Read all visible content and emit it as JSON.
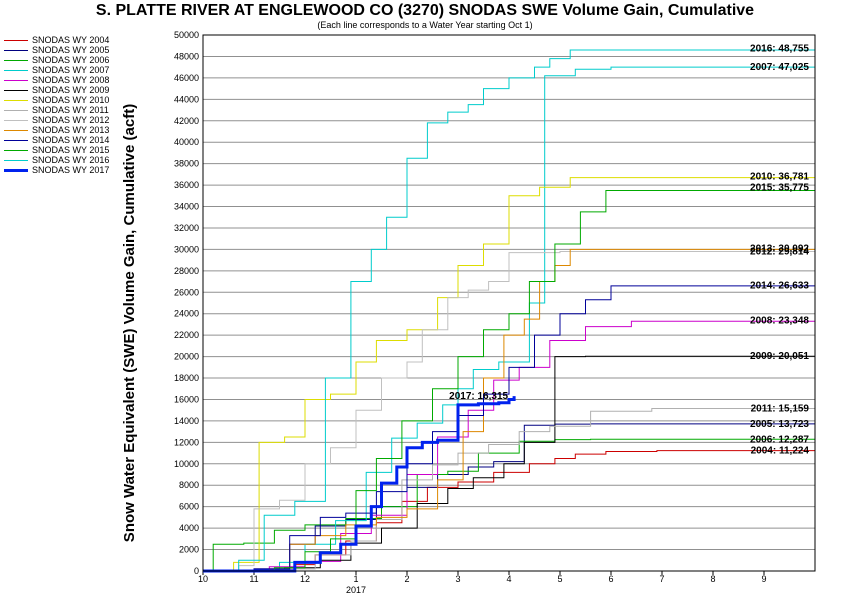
{
  "chart_data": {
    "type": "line",
    "title": "S. PLATTE RIVER AT ENGLEWOOD CO (3270) SNODAS SWE Volume Gain, Cumulative",
    "subtitle": "(Each line corresponds to a Water Year starting Oct 1)",
    "ylabel": "Snow Water Equivalent (SWE) Volume Gain, Cumulative (acft)",
    "xlabel": "",
    "x_year_label": "2017",
    "ylim": [
      0,
      50000
    ],
    "yticks": [
      0,
      2000,
      4000,
      6000,
      8000,
      10000,
      12000,
      14000,
      16000,
      18000,
      20000,
      22000,
      24000,
      26000,
      28000,
      30000,
      32000,
      34000,
      36000,
      38000,
      40000,
      42000,
      44000,
      46000,
      48000,
      50000
    ],
    "x_months": [
      "10",
      "11",
      "12",
      "1",
      "2",
      "3",
      "4",
      "5",
      "6",
      "7",
      "8",
      "9"
    ],
    "xlim": [
      0,
      12
    ],
    "grid": "horizontal",
    "legend_position": "left, outside plot",
    "series": [
      {
        "name": "SNODAS WY 2004",
        "color": "#cc0000",
        "width": 1,
        "end_label": "2004: 11,224",
        "points": [
          [
            0,
            0
          ],
          [
            1.5,
            0
          ],
          [
            1.8,
            600
          ],
          [
            2.2,
            1500
          ],
          [
            2.8,
            2800
          ],
          [
            3.4,
            4500
          ],
          [
            3.9,
            6500
          ],
          [
            4.4,
            7800
          ],
          [
            5.0,
            8300
          ],
          [
            5.7,
            9200
          ],
          [
            6.4,
            10000
          ],
          [
            6.9,
            10500
          ],
          [
            7.3,
            10900
          ],
          [
            7.9,
            11150
          ],
          [
            8.9,
            11224
          ],
          [
            12,
            11224
          ]
        ]
      },
      {
        "name": "SNODAS WY 2005",
        "color": "#000080",
        "width": 1,
        "end_label": "2005: 13,723",
        "points": [
          [
            0,
            0
          ],
          [
            1.0,
            200
          ],
          [
            1.7,
            2500
          ],
          [
            2.2,
            4200
          ],
          [
            2.8,
            4800
          ],
          [
            3.4,
            6000
          ],
          [
            4.0,
            7800
          ],
          [
            4.6,
            9000
          ],
          [
            5.2,
            9700
          ],
          [
            5.7,
            10200
          ],
          [
            6.3,
            13600
          ],
          [
            6.9,
            13700
          ],
          [
            7.6,
            13723
          ],
          [
            12,
            13723
          ]
        ]
      },
      {
        "name": "SNODAS WY 2006",
        "color": "#00aa00",
        "width": 1,
        "end_label": "2006: 12,287",
        "points": [
          [
            0,
            0
          ],
          [
            0.2,
            2500
          ],
          [
            0.8,
            2600
          ],
          [
            1.4,
            3800
          ],
          [
            2.0,
            4300
          ],
          [
            2.8,
            4900
          ],
          [
            3.5,
            6000
          ],
          [
            4.2,
            9000
          ],
          [
            4.8,
            9300
          ],
          [
            5.4,
            11000
          ],
          [
            6.2,
            12100
          ],
          [
            6.9,
            12250
          ],
          [
            7.6,
            12287
          ],
          [
            12,
            12287
          ]
        ]
      },
      {
        "name": "SNODAS WY 2007",
        "color": "#00cccc",
        "width": 1,
        "end_label": "2007: 47,025",
        "points": [
          [
            0,
            0
          ],
          [
            1.5,
            800
          ],
          [
            2.0,
            2500
          ],
          [
            2.6,
            4700
          ],
          [
            3.2,
            9200
          ],
          [
            3.7,
            12400
          ],
          [
            4.2,
            13800
          ],
          [
            4.7,
            15500
          ],
          [
            5.0,
            17000
          ],
          [
            5.3,
            18800
          ],
          [
            5.8,
            19500
          ],
          [
            6.4,
            25000
          ],
          [
            6.7,
            46200
          ],
          [
            7.3,
            46800
          ],
          [
            8.0,
            47000
          ],
          [
            12,
            47025
          ]
        ]
      },
      {
        "name": "SNODAS WY 2008",
        "color": "#cc00cc",
        "width": 1,
        "end_label": "2008: 23,348",
        "points": [
          [
            0,
            0
          ],
          [
            1.3,
            400
          ],
          [
            2.0,
            900
          ],
          [
            2.7,
            3500
          ],
          [
            3.3,
            5200
          ],
          [
            4.0,
            9000
          ],
          [
            4.6,
            12500
          ],
          [
            5.2,
            15000
          ],
          [
            5.7,
            17800
          ],
          [
            6.2,
            19000
          ],
          [
            6.8,
            21500
          ],
          [
            7.5,
            22800
          ],
          [
            8.4,
            23300
          ],
          [
            12,
            23348
          ]
        ]
      },
      {
        "name": "SNODAS WY 2009",
        "color": "#000000",
        "width": 1,
        "end_label": "2009: 20,051",
        "points": [
          [
            0,
            0
          ],
          [
            1.6,
            300
          ],
          [
            2.3,
            1000
          ],
          [
            2.9,
            2600
          ],
          [
            3.5,
            4000
          ],
          [
            4.2,
            6300
          ],
          [
            4.8,
            7700
          ],
          [
            5.3,
            8700
          ],
          [
            5.9,
            10000
          ],
          [
            6.3,
            12000
          ],
          [
            6.9,
            20000
          ],
          [
            7.5,
            20030
          ],
          [
            12,
            20051
          ]
        ]
      },
      {
        "name": "SNODAS WY 2010",
        "color": "#dddd00",
        "width": 1,
        "end_label": "2010: 36,781",
        "points": [
          [
            0,
            0
          ],
          [
            0.6,
            800
          ],
          [
            1.1,
            12000
          ],
          [
            1.6,
            12500
          ],
          [
            2.0,
            16000
          ],
          [
            2.5,
            16500
          ],
          [
            3.0,
            19500
          ],
          [
            3.4,
            21500
          ],
          [
            4.0,
            22500
          ],
          [
            4.6,
            25500
          ],
          [
            5.0,
            28500
          ],
          [
            5.5,
            30500
          ],
          [
            6.0,
            35000
          ],
          [
            6.6,
            35800
          ],
          [
            7.2,
            36700
          ],
          [
            12,
            36781
          ]
        ]
      },
      {
        "name": "SNODAS WY 2011",
        "color": "#b0b0b0",
        "width": 1,
        "end_label": "2011: 15,159",
        "points": [
          [
            0,
            0
          ],
          [
            1.6,
            200
          ],
          [
            2.2,
            1500
          ],
          [
            2.9,
            2800
          ],
          [
            3.4,
            4800
          ],
          [
            3.9,
            8500
          ],
          [
            4.5,
            9900
          ],
          [
            5.0,
            11000
          ],
          [
            5.6,
            11800
          ],
          [
            6.2,
            13000
          ],
          [
            6.8,
            13500
          ],
          [
            7.6,
            14900
          ],
          [
            8.8,
            15159
          ],
          [
            12,
            15159
          ]
        ]
      },
      {
        "name": "SNODAS WY 2012",
        "color": "#c0c0c0",
        "width": 1,
        "end_label": "2012: 29,814",
        "points": [
          [
            0,
            0
          ],
          [
            0.7,
            500
          ],
          [
            1.0,
            5800
          ],
          [
            1.5,
            6600
          ],
          [
            2.0,
            10000
          ],
          [
            2.5,
            11500
          ],
          [
            3.0,
            15000
          ],
          [
            3.5,
            18000
          ],
          [
            4.0,
            19500
          ],
          [
            4.3,
            22500
          ],
          [
            4.8,
            25500
          ],
          [
            5.2,
            26200
          ],
          [
            5.6,
            27000
          ],
          [
            6.0,
            29700
          ],
          [
            7.0,
            29800
          ],
          [
            12,
            29814
          ]
        ]
      },
      {
        "name": "SNODAS WY 2013",
        "color": "#dd8800",
        "width": 1,
        "end_label": "2013: 30,092",
        "points": [
          [
            0,
            0
          ],
          [
            1.3,
            200
          ],
          [
            1.7,
            2500
          ],
          [
            2.2,
            3300
          ],
          [
            2.8,
            4300
          ],
          [
            3.4,
            5000
          ],
          [
            4.0,
            5800
          ],
          [
            4.6,
            8500
          ],
          [
            5.1,
            13000
          ],
          [
            5.5,
            18000
          ],
          [
            5.9,
            22000
          ],
          [
            6.3,
            23500
          ],
          [
            6.6,
            27000
          ],
          [
            6.9,
            28500
          ],
          [
            7.2,
            30000
          ],
          [
            12,
            30092
          ]
        ]
      },
      {
        "name": "SNODAS WY 2014",
        "color": "#000099",
        "width": 1,
        "end_label": "2014: 26,633",
        "points": [
          [
            0,
            0
          ],
          [
            1.0,
            200
          ],
          [
            1.7,
            3300
          ],
          [
            2.3,
            5000
          ],
          [
            2.8,
            5400
          ],
          [
            3.4,
            7400
          ],
          [
            4.0,
            10000
          ],
          [
            4.5,
            13000
          ],
          [
            5.0,
            14500
          ],
          [
            5.5,
            16500
          ],
          [
            6.0,
            19000
          ],
          [
            6.5,
            22000
          ],
          [
            7.0,
            24000
          ],
          [
            7.5,
            25300
          ],
          [
            8.0,
            26600
          ],
          [
            12,
            26633
          ]
        ]
      },
      {
        "name": "SNODAS WY 2015",
        "color": "#00aa00",
        "width": 1,
        "end_label": "2015: 35,775",
        "points": [
          [
            0,
            0
          ],
          [
            1.4,
            300
          ],
          [
            2.0,
            1800
          ],
          [
            2.5,
            3000
          ],
          [
            3.0,
            7500
          ],
          [
            3.4,
            10500
          ],
          [
            3.9,
            14000
          ],
          [
            4.5,
            17000
          ],
          [
            5.0,
            20000
          ],
          [
            5.5,
            22500
          ],
          [
            6.0,
            24000
          ],
          [
            6.4,
            27000
          ],
          [
            6.9,
            30500
          ],
          [
            7.4,
            33500
          ],
          [
            7.9,
            35500
          ],
          [
            12,
            35775
          ]
        ]
      },
      {
        "name": "SNODAS WY 2016",
        "color": "#00cccc",
        "width": 1,
        "end_label": "2016: 48,755",
        "points": [
          [
            0,
            0
          ],
          [
            0.7,
            1000
          ],
          [
            1.2,
            5200
          ],
          [
            1.8,
            6500
          ],
          [
            2.4,
            18000
          ],
          [
            2.9,
            27000
          ],
          [
            3.3,
            30000
          ],
          [
            3.6,
            33000
          ],
          [
            4.0,
            38500
          ],
          [
            4.4,
            41800
          ],
          [
            4.8,
            42800
          ],
          [
            5.2,
            43500
          ],
          [
            5.5,
            45000
          ],
          [
            6.0,
            46000
          ],
          [
            6.5,
            47000
          ],
          [
            6.8,
            47800
          ],
          [
            7.2,
            48600
          ],
          [
            12,
            48755
          ]
        ]
      },
      {
        "name": "SNODAS WY 2017",
        "color": "#0022ee",
        "width": 3,
        "end_label": "2017: 16,315",
        "points": [
          [
            0,
            0
          ],
          [
            1.5,
            0
          ],
          [
            1.8,
            800
          ],
          [
            2.3,
            1700
          ],
          [
            2.7,
            2500
          ],
          [
            3.0,
            4200
          ],
          [
            3.3,
            6000
          ],
          [
            3.5,
            8200
          ],
          [
            3.8,
            9700
          ],
          [
            4.0,
            11500
          ],
          [
            4.3,
            12000
          ],
          [
            4.6,
            12200
          ],
          [
            5.0,
            15500
          ],
          [
            5.4,
            15600
          ],
          [
            5.8,
            15700
          ],
          [
            6.0,
            16000
          ],
          [
            6.1,
            16315
          ]
        ]
      }
    ]
  }
}
